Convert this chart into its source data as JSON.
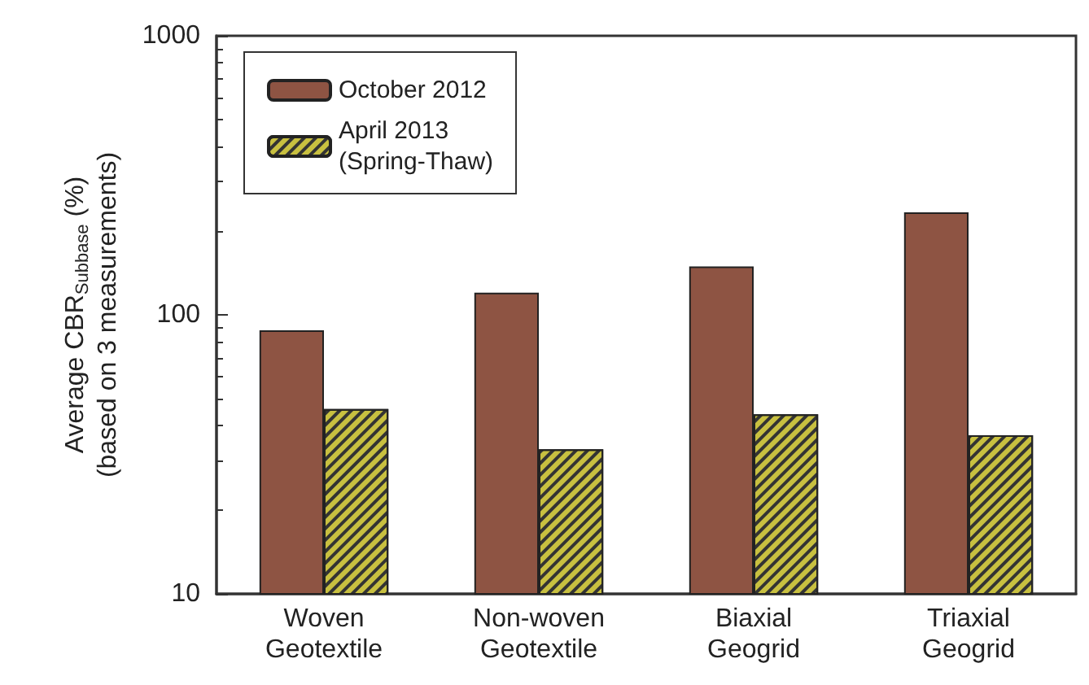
{
  "chart_data": {
    "type": "bar",
    "ylabel": "Average CBR$_{Subbase}$ (%)\n(based on 3 measurements)",
    "categories": [
      "Woven\nGeotextile",
      "Non-woven\nGeotextile",
      "Biaxial\nGeogrid",
      "Triaxial\nGeogrid"
    ],
    "series": [
      {
        "name": "October 2012",
        "color": "#8e5443",
        "values": [
          88,
          120,
          149,
          233
        ]
      },
      {
        "name": "April 2013\n(Spring-Thaw)",
        "color": "#c8c040",
        "values": [
          46,
          33,
          44,
          37
        ]
      }
    ],
    "log": "y",
    "ylim": [
      10,
      1000
    ],
    "yticks": [
      10,
      100,
      1000
    ],
    "grid": false,
    "legend": "top left"
  }
}
